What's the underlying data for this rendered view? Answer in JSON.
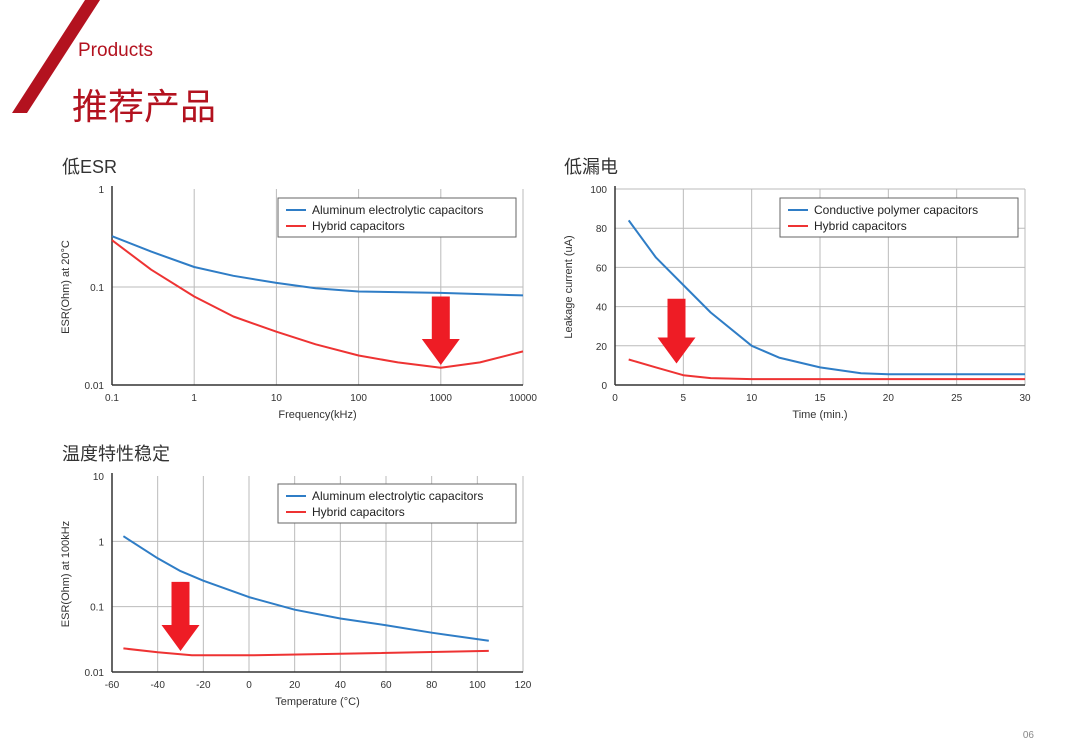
{
  "header": {
    "products": "Products",
    "title": "推荐产品"
  },
  "page_number": "06",
  "colors": {
    "brand": "#b3121f",
    "blue": "#2f7dc6",
    "red": "#ee3333",
    "arrow": "#ee1c25"
  },
  "chart_data": [
    {
      "type": "line",
      "section_title": "低ESR",
      "xlabel": "Frequency(kHz)",
      "ylabel": "ESR(Ohm) at 20°C",
      "xscale": "log",
      "yscale": "log",
      "xlim": [
        0.1,
        10000
      ],
      "ylim": [
        0.01,
        1
      ],
      "xticks": [
        "0.1",
        "1",
        "10",
        "100",
        "1000",
        "10000"
      ],
      "yticks": [
        "0.01",
        "0.1",
        "1"
      ],
      "legend": "top-right",
      "grid": true,
      "series": [
        {
          "name": "Aluminum electrolytic capacitors",
          "color": "#2f7dc6",
          "x": [
            0.1,
            0.3,
            1,
            3,
            10,
            30,
            100,
            1000,
            10000
          ],
          "y": [
            0.33,
            0.23,
            0.16,
            0.13,
            0.11,
            0.097,
            0.09,
            0.087,
            0.082
          ]
        },
        {
          "name": "Hybrid capacitors",
          "color": "#ee3333",
          "x": [
            0.1,
            0.3,
            1,
            3,
            10,
            30,
            100,
            300,
            1000,
            3000,
            10000
          ],
          "y": [
            0.3,
            0.15,
            0.08,
            0.05,
            0.035,
            0.026,
            0.02,
            0.017,
            0.015,
            0.017,
            0.022
          ]
        }
      ],
      "annotation": {
        "type": "arrow",
        "x": 1000,
        "y_from": 0.08,
        "y_to": 0.016
      }
    },
    {
      "type": "line",
      "section_title": "低漏电",
      "xlabel": "Time (min.)",
      "ylabel": "Leakage current (uA)",
      "xlim": [
        0,
        30
      ],
      "ylim": [
        0,
        100
      ],
      "xticks": [
        "0",
        "5",
        "10",
        "15",
        "20",
        "25",
        "30"
      ],
      "yticks": [
        "0",
        "20",
        "40",
        "60",
        "80",
        "100"
      ],
      "legend": "top-right",
      "grid": true,
      "series": [
        {
          "name": "Conductive polymer capacitors",
          "color": "#2f7dc6",
          "x": [
            1,
            3,
            5,
            7,
            10,
            12,
            15,
            18,
            20,
            25,
            30
          ],
          "y": [
            84,
            65,
            51,
            37,
            20,
            14,
            9,
            6,
            5.5,
            5.5,
            5.5
          ]
        },
        {
          "name": "Hybrid capacitors",
          "color": "#ee3333",
          "x": [
            1,
            3,
            5,
            7,
            10,
            15,
            20,
            30
          ],
          "y": [
            13,
            9,
            5,
            3.5,
            3,
            3,
            3,
            3
          ]
        }
      ],
      "annotation": {
        "type": "arrow",
        "x": 4.5,
        "y_from": 44,
        "y_to": 11
      }
    },
    {
      "type": "line",
      "section_title": "温度特性稳定",
      "xlabel": "Temperature (°C)",
      "ylabel": "ESR(Ohm) at 100kHz",
      "yscale": "log",
      "xlim": [
        -60,
        120
      ],
      "ylim": [
        0.01,
        10
      ],
      "xticks": [
        "-60",
        "-40",
        "-20",
        "0",
        "20",
        "40",
        "60",
        "80",
        "100",
        "120"
      ],
      "yticks": [
        "0.01",
        "0.1",
        "1",
        "10"
      ],
      "legend": "top-right",
      "grid": true,
      "series": [
        {
          "name": "Aluminum electrolytic capacitors",
          "color": "#2f7dc6",
          "x": [
            -55,
            -40,
            -30,
            -20,
            0,
            20,
            40,
            60,
            80,
            105
          ],
          "y": [
            1.2,
            0.55,
            0.35,
            0.25,
            0.14,
            0.09,
            0.066,
            0.052,
            0.04,
            0.03
          ]
        },
        {
          "name": "Hybrid capacitors",
          "color": "#ee3333",
          "x": [
            -55,
            -40,
            -25,
            0,
            40,
            105
          ],
          "y": [
            0.023,
            0.02,
            0.018,
            0.018,
            0.019,
            0.021
          ]
        }
      ],
      "annotation": {
        "type": "arrow",
        "x": -30,
        "y_from": 0.24,
        "y_to": 0.021
      }
    }
  ]
}
